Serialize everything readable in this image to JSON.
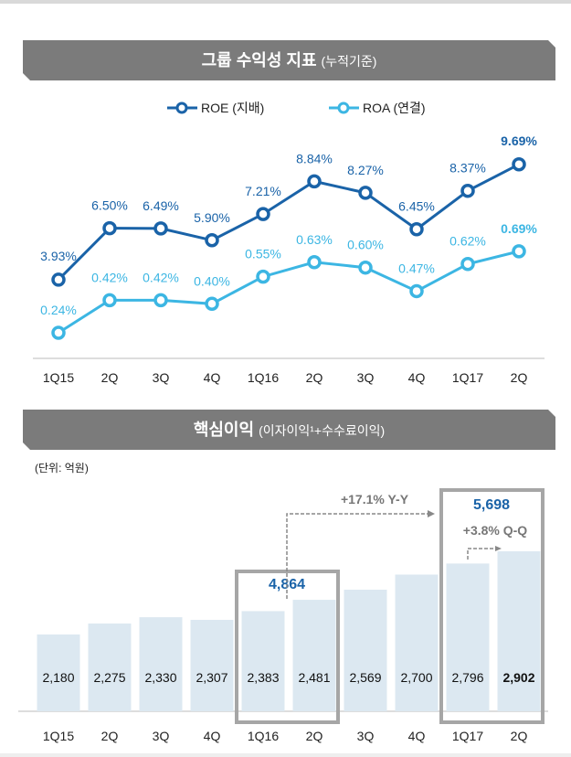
{
  "chart_data": [
    {
      "type": "line",
      "title": "그룹 수익성 지표",
      "subtitle": "(누적기준)",
      "categories": [
        "1Q15",
        "2Q",
        "3Q",
        "4Q",
        "1Q16",
        "2Q",
        "3Q",
        "4Q",
        "1Q17",
        "2Q"
      ],
      "series": [
        {
          "name": "ROE (지배)",
          "color": "#1a63a8",
          "values": [
            3.93,
            6.5,
            6.49,
            5.9,
            7.21,
            8.84,
            8.27,
            6.45,
            8.37,
            9.69
          ],
          "labels": [
            "3.93%",
            "6.50%",
            "6.49%",
            "5.90%",
            "7.21%",
            "8.84%",
            "8.27%",
            "6.45%",
            "8.37%",
            "9.69%"
          ]
        },
        {
          "name": "ROA (연결)",
          "color": "#3cb6e3",
          "values": [
            0.24,
            0.42,
            0.42,
            0.4,
            0.55,
            0.63,
            0.6,
            0.47,
            0.62,
            0.69
          ],
          "labels": [
            "0.24%",
            "0.42%",
            "0.42%",
            "0.40%",
            "0.55%",
            "0.63%",
            "0.60%",
            "0.47%",
            "0.62%",
            "0.69%"
          ]
        }
      ],
      "legend": "top-center",
      "grid": false
    },
    {
      "type": "bar",
      "title": "핵심이익",
      "subtitle": "(이자이익¹+수수료이익)",
      "unit": "(단위: 억원)",
      "categories": [
        "1Q15",
        "2Q",
        "3Q",
        "4Q",
        "1Q16",
        "2Q",
        "3Q",
        "4Q",
        "1Q17",
        "2Q"
      ],
      "values": [
        2180,
        2275,
        2330,
        2307,
        2383,
        2481,
        2569,
        2700,
        2796,
        2902
      ],
      "labels": [
        "2,180",
        "2,275",
        "2,330",
        "2,307",
        "2,383",
        "2,481",
        "2,569",
        "2,700",
        "2,796",
        "2,902"
      ],
      "bar_color": "#dce8f1",
      "annotations": {
        "h1_2016_total": "4,864",
        "h1_2017_total": "5,698",
        "yoy": "+17.1% Y-Y",
        "qoq": "+3.8% Q-Q"
      }
    }
  ]
}
